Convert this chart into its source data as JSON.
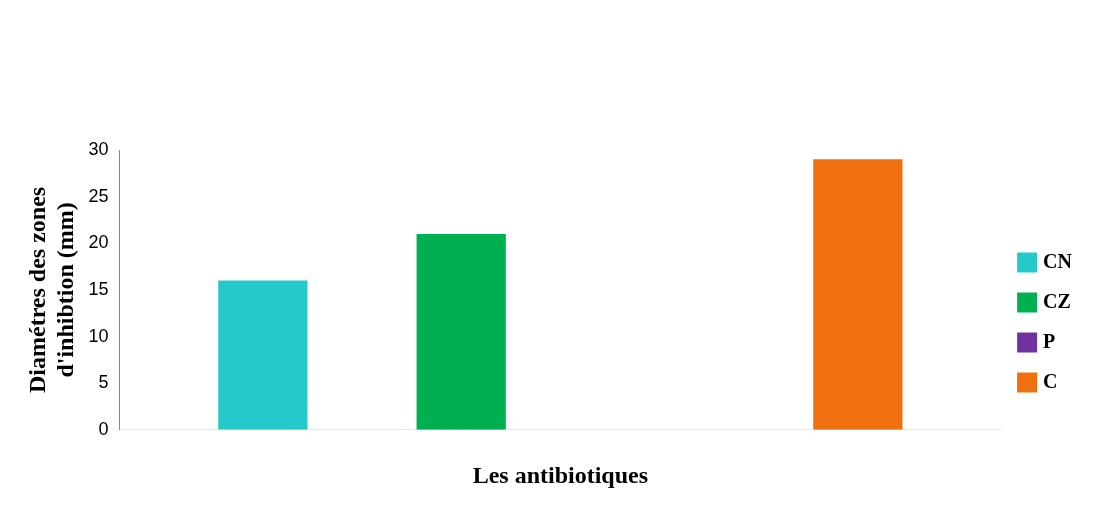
{
  "chart_data": {
    "type": "bar",
    "xlabel": "Les antibiotiques",
    "ylabel": "Diamétres des zones d'inhibtion (mm)",
    "categories": [
      null
    ],
    "series": [
      {
        "name": "CN",
        "color": "#26c9c9",
        "values": [
          16
        ]
      },
      {
        "name": "CZ",
        "color": "#00b050",
        "values": [
          21
        ]
      },
      {
        "name": "P",
        "color": "#7030a0",
        "values": [
          0
        ]
      },
      {
        "name": "C",
        "color": "#f07010",
        "values": [
          29
        ]
      }
    ],
    "ylim": [
      0,
      30
    ],
    "yticks": [
      0,
      5,
      10,
      15,
      20,
      25,
      30
    ],
    "grid": false,
    "legend": "right"
  }
}
